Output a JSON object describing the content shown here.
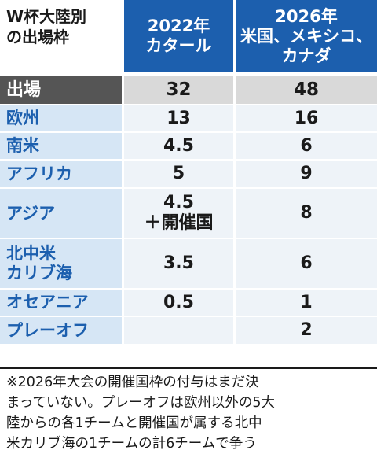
{
  "header": {
    "title_lines": [
      "W杯大陸別",
      "の出場枠"
    ],
    "col1_lines": [
      "2022年",
      "カタール"
    ],
    "col2_lines": [
      "2026年",
      "米国、メキシコ、",
      "カナダ"
    ]
  },
  "chart_data": {
    "type": "table",
    "columns": [
      "2022年 カタール",
      "2026年 米国、メキシコ、カナダ"
    ],
    "rows": [
      {
        "label": [
          "出場"
        ],
        "v2022": [
          "32"
        ],
        "v2026": [
          "48"
        ]
      },
      {
        "label": [
          "欧州"
        ],
        "v2022": [
          "13"
        ],
        "v2026": [
          "16"
        ]
      },
      {
        "label": [
          "南米"
        ],
        "v2022": [
          "4.5"
        ],
        "v2026": [
          "6"
        ]
      },
      {
        "label": [
          "アフリカ"
        ],
        "v2022": [
          "5"
        ],
        "v2026": [
          "9"
        ]
      },
      {
        "label": [
          "アジア"
        ],
        "v2022": [
          "4.5",
          "＋開催国"
        ],
        "v2026": [
          "8"
        ]
      },
      {
        "label": [
          "北中米",
          "カリブ海"
        ],
        "v2022": [
          "3.5"
        ],
        "v2026": [
          "6"
        ]
      },
      {
        "label": [
          "オセアニア"
        ],
        "v2022": [
          "0.5"
        ],
        "v2026": [
          "1"
        ]
      },
      {
        "label": [
          "プレーオフ"
        ],
        "v2022": [
          ""
        ],
        "v2026": [
          "2"
        ]
      }
    ]
  },
  "note_lines": [
    "※2026年大会の開催国枠の付与はまだ決",
    "まっていない。プレーオフは欧州以外の5大",
    "陸からの各1チームと開催国が属する北中",
    "米カリブ海の1チームの計6チームで争う"
  ],
  "colors": {
    "header_blue": "#1c5fae",
    "label_bg": "#d6e6f5",
    "value_bg": "#eef3f8",
    "total_label_bg": "#555555",
    "total_value_bg": "#d9d9d9"
  }
}
